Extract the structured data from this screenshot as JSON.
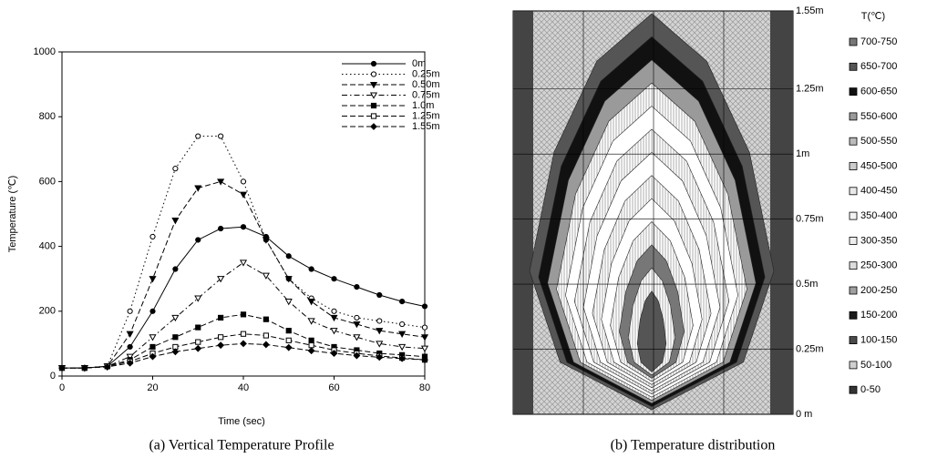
{
  "chart_data": [
    {
      "type": "line",
      "caption": "(a) Vertical Temperature Profile",
      "x_label": "Time (sec)",
      "y_label": "Temperature (℃)",
      "x": [
        0,
        5,
        10,
        15,
        20,
        25,
        30,
        35,
        40,
        45,
        50,
        55,
        60,
        65,
        70,
        75,
        80
      ],
      "xlim": [
        0,
        80
      ],
      "xticks": [
        0,
        20,
        40,
        60,
        80
      ],
      "ylim": [
        0,
        1000
      ],
      "yticks": [
        0,
        200,
        400,
        600,
        800,
        1000
      ],
      "series": [
        {
          "name": "0m",
          "color": "#000000",
          "marker": "circle-filled",
          "dash": "solid",
          "values": [
            25,
            25,
            30,
            90,
            200,
            330,
            420,
            455,
            460,
            430,
            370,
            330,
            300,
            275,
            250,
            230,
            215
          ]
        },
        {
          "name": "0.25m",
          "color": "#000000",
          "marker": "circle-open",
          "dash": "dotted",
          "values": [
            25,
            25,
            30,
            200,
            430,
            640,
            740,
            740,
            600,
            420,
            300,
            240,
            200,
            180,
            170,
            160,
            150
          ]
        },
        {
          "name": "0.50m",
          "color": "#000000",
          "marker": "triangle-filled",
          "dash": "dashed",
          "values": [
            25,
            25,
            30,
            130,
            300,
            480,
            580,
            600,
            560,
            420,
            300,
            230,
            180,
            160,
            140,
            130,
            120
          ]
        },
        {
          "name": "0.75m",
          "color": "#000000",
          "marker": "triangle-open",
          "dash": "dashdot",
          "values": [
            25,
            25,
            30,
            60,
            120,
            180,
            240,
            300,
            350,
            310,
            230,
            170,
            140,
            120,
            100,
            90,
            85
          ]
        },
        {
          "name": "1.0m",
          "color": "#000000",
          "marker": "square-filled",
          "dash": "dashed",
          "values": [
            25,
            25,
            30,
            50,
            90,
            120,
            150,
            180,
            190,
            175,
            140,
            110,
            90,
            80,
            70,
            65,
            60
          ]
        },
        {
          "name": "1.25m",
          "color": "#000000",
          "marker": "square-open",
          "dash": "dashed",
          "values": [
            25,
            25,
            30,
            45,
            70,
            90,
            105,
            120,
            130,
            125,
            110,
            95,
            80,
            70,
            62,
            56,
            50
          ]
        },
        {
          "name": "1.55m",
          "color": "#000000",
          "marker": "diamond-filled",
          "dash": "dashed",
          "values": [
            25,
            25,
            28,
            40,
            60,
            75,
            85,
            95,
            100,
            97,
            88,
            78,
            70,
            63,
            58,
            54,
            50
          ]
        }
      ]
    },
    {
      "type": "contour",
      "caption": "(b) Temperature distribution",
      "legend_title": "T(℃)",
      "ylim": [
        0,
        1.55
      ],
      "yticks": [
        {
          "value": 1.55,
          "label": "1.55m"
        },
        {
          "value": 1.25,
          "label": "1.25m"
        },
        {
          "value": 1,
          "label": "1m"
        },
        {
          "value": 0.75,
          "label": "0.75m"
        },
        {
          "value": 0.5,
          "label": "0.5m"
        },
        {
          "value": 0.25,
          "label": "0.25m"
        },
        {
          "value": 0,
          "label": "0 m"
        }
      ],
      "grid": true,
      "levels": [
        "700-750",
        "650-700",
        "600-650",
        "550-600",
        "500-550",
        "450-500",
        "400-450",
        "350-400",
        "300-350",
        "250-300",
        "200-250",
        "150-200",
        "100-150",
        "50-100",
        "0-50"
      ],
      "level_colors": [
        "#777777",
        "#555555",
        "#111111",
        "#9a9a9a",
        "#bbbbbb",
        "#cccccc",
        "#e8e8e8",
        "#f2f2f2",
        "#eeeeee",
        "#dddddd",
        "#a0a0a0",
        "#1a1a1a",
        "#4a4a4a",
        "#d0d0d0",
        "#333333"
      ]
    }
  ]
}
